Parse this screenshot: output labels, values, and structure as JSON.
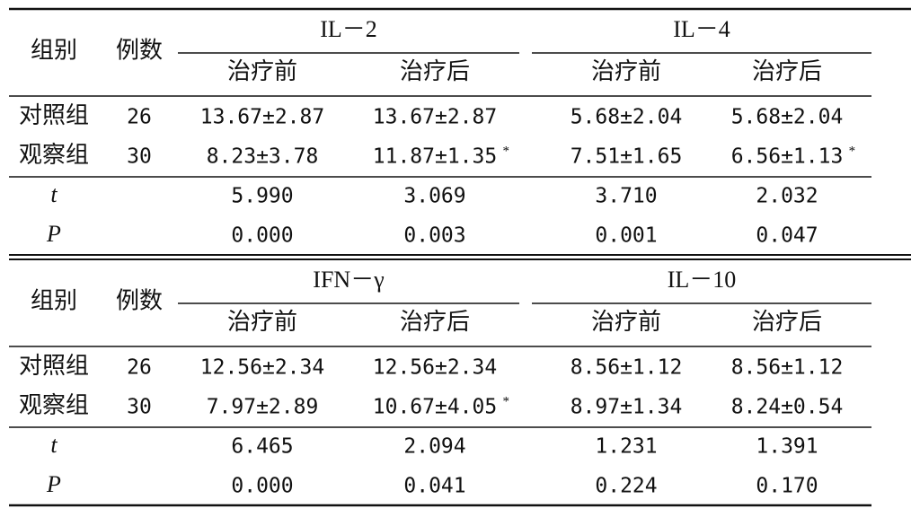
{
  "tables": [
    {
      "header": {
        "group": "组别",
        "n": "例数",
        "indicators": [
          {
            "name": "IL－2",
            "sub": [
              "治疗前",
              "治疗后"
            ]
          },
          {
            "name": "IL－4",
            "sub": [
              "治疗前",
              "治疗后"
            ]
          }
        ]
      },
      "rows": [
        {
          "label": "对照组",
          "n": "26",
          "cells": [
            "13.67±2.87",
            "13.67±2.87",
            "5.68±2.04",
            "5.68±2.04"
          ]
        },
        {
          "label": "观察组",
          "n": "30",
          "cells": [
            "8.23±3.78",
            {
              "value": "11.87±1.35",
              "mark": "*"
            },
            "7.51±1.65",
            {
              "value": "6.56±1.13",
              "mark": "*"
            }
          ]
        },
        {
          "label": "t",
          "cells": [
            "5.990",
            "3.069",
            "3.710",
            "2.032"
          ]
        },
        {
          "label": "P",
          "cells": [
            "0.000",
            "0.003",
            "0.001",
            "0.047"
          ]
        }
      ]
    },
    {
      "header": {
        "group": "组别",
        "n": "例数",
        "indicators": [
          {
            "name": "IFN－γ",
            "sub": [
              "治疗前",
              "治疗后"
            ]
          },
          {
            "name": "IL－10",
            "sub": [
              "治疗前",
              "治疗后"
            ]
          }
        ]
      },
      "rows": [
        {
          "label": "对照组",
          "n": "26",
          "cells": [
            "12.56±2.34",
            "12.56±2.34",
            "8.56±1.12",
            "8.56±1.12"
          ]
        },
        {
          "label": "观察组",
          "n": "30",
          "cells": [
            "7.97±2.89",
            {
              "value": "10.67±4.05",
              "mark": "*"
            },
            "8.97±1.34",
            "8.24±0.54"
          ]
        },
        {
          "label": "t",
          "cells": [
            "6.465",
            "2.094",
            "1.231",
            "1.391"
          ]
        },
        {
          "label": "P",
          "cells": [
            "0.000",
            "0.041",
            "0.224",
            "0.170"
          ]
        }
      ]
    }
  ]
}
